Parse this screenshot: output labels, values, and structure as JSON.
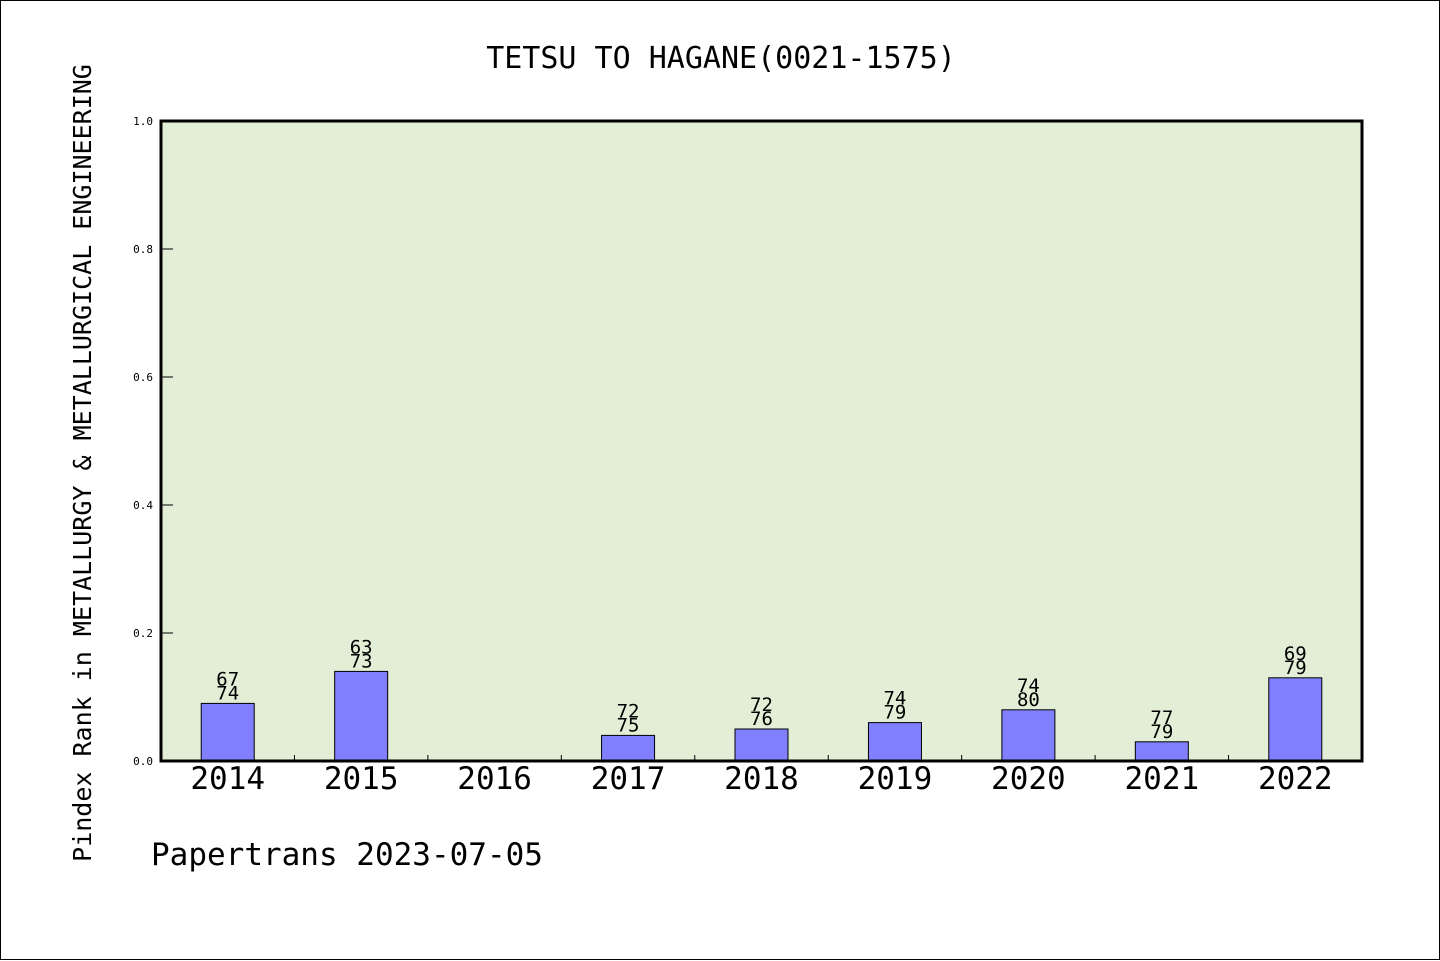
{
  "chart_data": {
    "type": "bar",
    "title": "TETSU TO HAGANE(0021-1575)",
    "xlabel": "",
    "ylabel": "Pindex Rank in METALLURGY & METALLURGICAL ENGINEERING",
    "categories": [
      "2014",
      "2015",
      "2016",
      "2017",
      "2018",
      "2019",
      "2020",
      "2021",
      "2022"
    ],
    "values": [
      0.09,
      0.14,
      0,
      0.04,
      0.05,
      0.06,
      0.08,
      0.03,
      0.13
    ],
    "label_top": [
      "67",
      "63",
      "",
      "72",
      "72",
      "74",
      "74",
      "77",
      "69"
    ],
    "label_bottom": [
      "74",
      "73",
      "",
      "75",
      "76",
      "79",
      "80",
      "79",
      "79"
    ],
    "ylim": [
      0,
      1.0
    ],
    "yticks": [
      "0.0",
      "0.2",
      "0.4",
      "0.6",
      "0.8",
      "1.0"
    ],
    "grid": false,
    "colors": {
      "plot_background": "#e2efd6",
      "bar_fill": "#8080ff",
      "bar_stroke": "#000000"
    }
  },
  "footer": "Papertrans 2023-07-05"
}
